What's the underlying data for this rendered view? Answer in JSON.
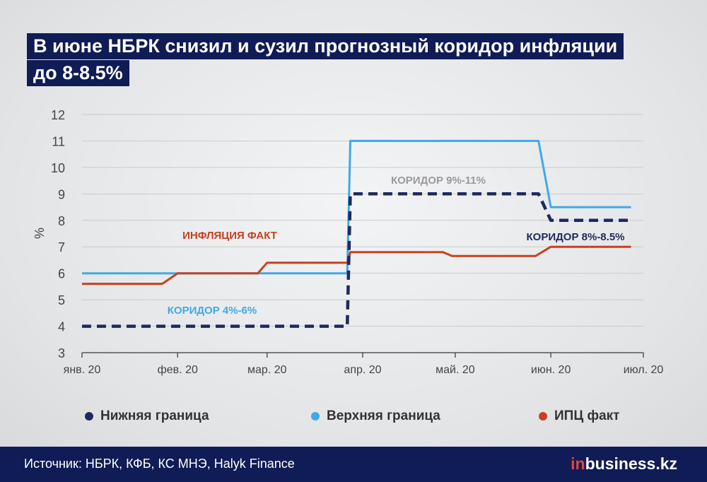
{
  "title": {
    "line1": "В июне НБРК снизил и сузил прогнозный коридор инфляции",
    "line2": "до 8-8.5%"
  },
  "chart_data": {
    "type": "line",
    "ylabel": "%",
    "ylim": [
      3,
      12
    ],
    "yticks": [
      "3",
      "4",
      "5",
      "6",
      "7",
      "8",
      "9",
      "10",
      "11",
      "12"
    ],
    "x_labels": [
      "янв. 20",
      "фев. 20",
      "мар. 20",
      "апр. 20",
      "май. 20",
      "июн. 20",
      "июл. 20"
    ],
    "grid": "horizontal",
    "series": [
      {
        "name": "Нижняя граница",
        "color": "#1e2a5e",
        "style": "dashed",
        "x": [
          "2020-01-01",
          "2020-03-27",
          "2020-03-28",
          "2020-05-28",
          "2020-06-01",
          "2020-06-27"
        ],
        "y": [
          4,
          4,
          9,
          9,
          8,
          8
        ]
      },
      {
        "name": "Верхняя граница",
        "color": "#3fa9e6",
        "style": "solid",
        "x": [
          "2020-01-01",
          "2020-03-27",
          "2020-03-28",
          "2020-05-28",
          "2020-06-01",
          "2020-06-27"
        ],
        "y": [
          6,
          6,
          11,
          11,
          8.5,
          8.5
        ]
      },
      {
        "name": "ИПЦ факт",
        "color": "#c8401f",
        "style": "solid",
        "x": [
          "2020-01-01",
          "2020-01-27",
          "2020-02-01",
          "2020-02-27",
          "2020-03-01",
          "2020-03-27",
          "2020-03-28",
          "2020-04-27",
          "2020-04-30",
          "2020-05-27",
          "2020-06-01",
          "2020-06-27"
        ],
        "y": [
          5.6,
          5.6,
          6.0,
          6.0,
          6.4,
          6.4,
          6.8,
          6.8,
          6.65,
          6.65,
          7.0,
          7.0
        ]
      }
    ],
    "annotations": [
      {
        "text": "ИНФЛЯЦИЯ ФАКТ",
        "color": "#c8401f"
      },
      {
        "text": "КОРИДОР 4%-6%",
        "color": "#3fa9e6"
      },
      {
        "text": "КОРИДОР 9%-11%",
        "color": "#9a9a9a"
      },
      {
        "text": "КОРИДОР 8%-8.5%",
        "color": "#1e2a5e"
      }
    ]
  },
  "legend": [
    {
      "label": "Нижняя граница",
      "color": "#1e2a5e"
    },
    {
      "label": "Верхняя граница",
      "color": "#3fa9e6"
    },
    {
      "label": "ИПЦ факт",
      "color": "#c8401f"
    }
  ],
  "footer": {
    "source": "Источник: НБРК, КФБ, КС МНЭ, Halyk Finance",
    "brand_prefix": "in",
    "brand_rest": "business.kz"
  }
}
